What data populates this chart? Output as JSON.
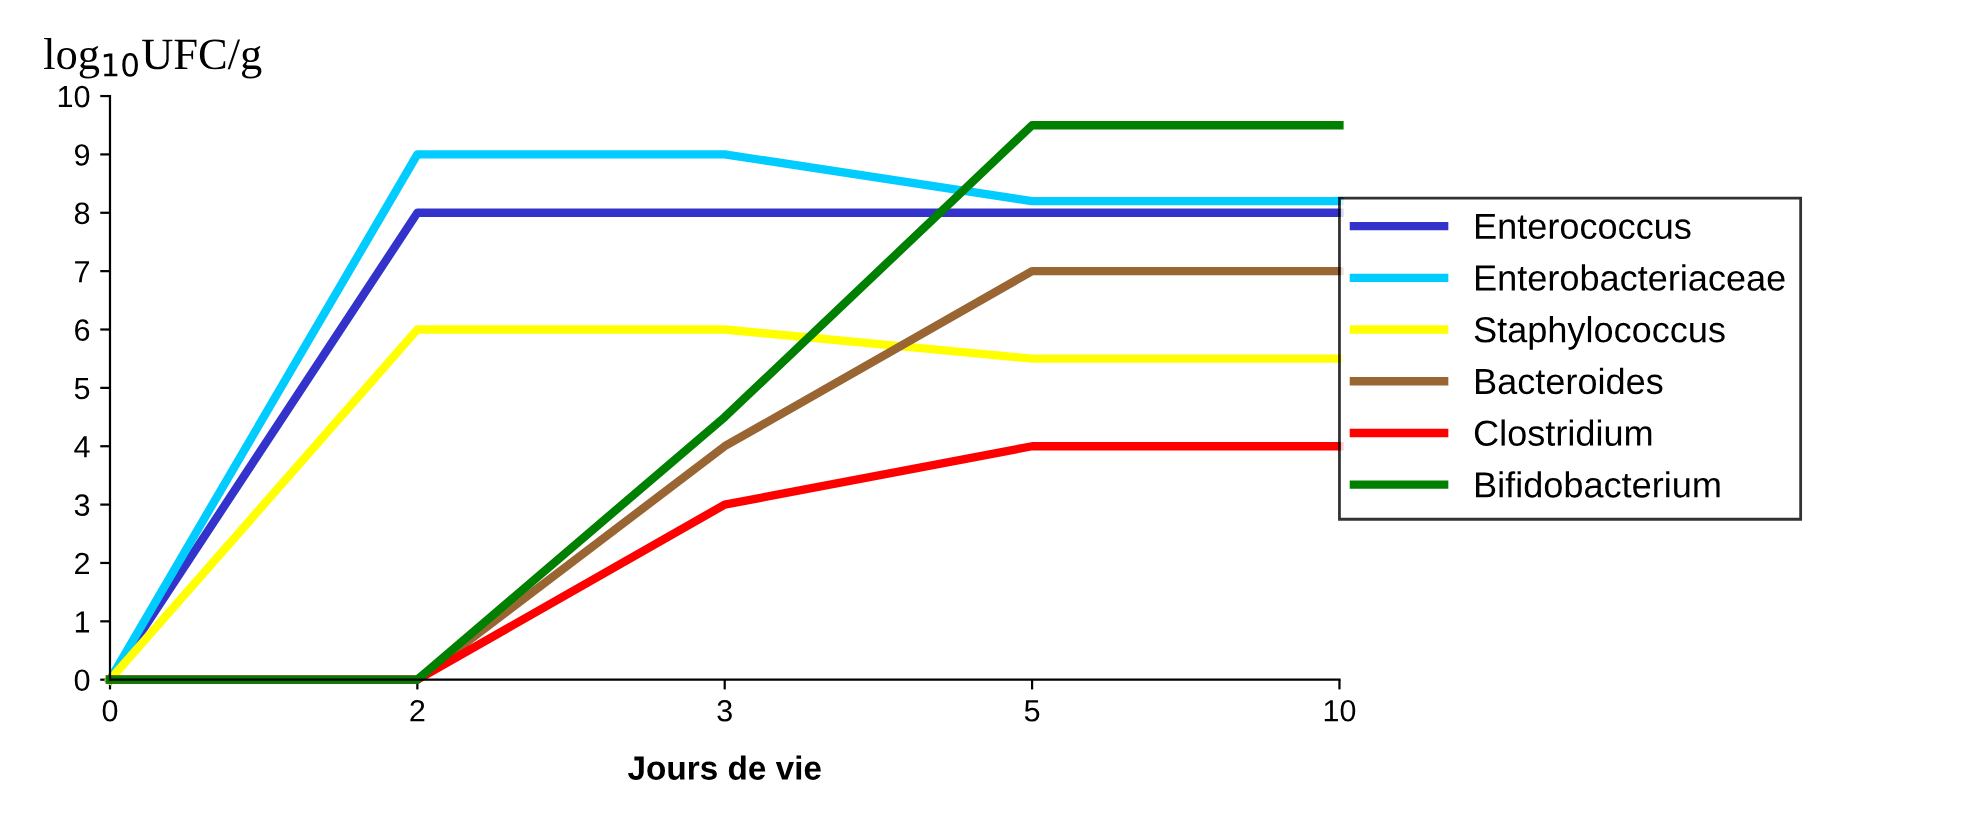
{
  "chart_data": {
    "type": "line",
    "ylabel": "log$_{10}$UFC/g",
    "xlabel": "Jours de vie",
    "categories": [
      "0",
      "2",
      "3",
      "5",
      "10"
    ],
    "series": [
      {
        "name": "Enterococcus",
        "color": "#3333cc",
        "values": [
          0,
          8,
          8,
          8,
          8
        ]
      },
      {
        "name": "Enterobacteriaceae",
        "color": "#00ccff",
        "values": [
          0,
          9,
          9,
          8.2,
          8.2
        ]
      },
      {
        "name": "Staphylococcus",
        "color": "#ffff00",
        "values": [
          0,
          6,
          6,
          5.5,
          5.5
        ]
      },
      {
        "name": "Bacteroides",
        "color": "#996633",
        "values": [
          0,
          0,
          4,
          7,
          7
        ]
      },
      {
        "name": "Clostridium",
        "color": "#ff0000",
        "values": [
          0,
          0,
          3,
          4,
          4
        ]
      },
      {
        "name": "Bifidobacterium",
        "color": "#008000",
        "values": [
          0,
          0,
          4.5,
          9.5,
          9.5
        ]
      }
    ],
    "ylim": [
      0,
      10
    ],
    "yticks": [
      0,
      1,
      2,
      3,
      4,
      5,
      6,
      7,
      8,
      9,
      10
    ],
    "grid": false,
    "legend": "right",
    "marker": "none",
    "line_style": "solid"
  }
}
